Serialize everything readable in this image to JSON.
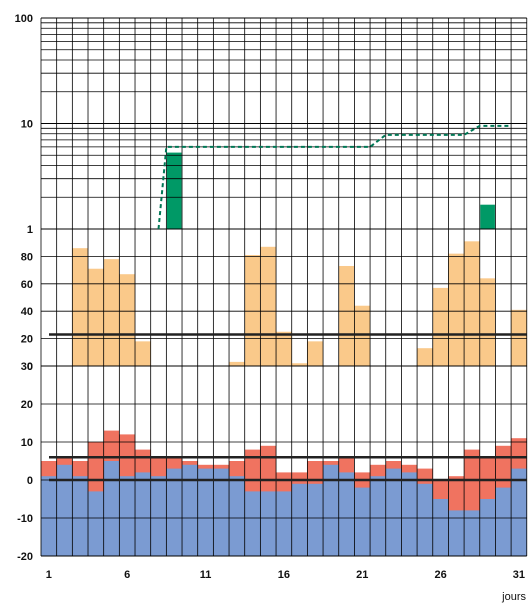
{
  "chart_data": {
    "type": "bar",
    "x_unit_label": "jours",
    "x_tick_labels": [
      "1",
      "6",
      "11",
      "16",
      "21",
      "26",
      "31"
    ],
    "x_days": [
      1,
      2,
      3,
      4,
      5,
      6,
      7,
      8,
      9,
      10,
      11,
      12,
      13,
      14,
      15,
      16,
      17,
      18,
      19,
      20,
      21,
      22,
      23,
      24,
      25,
      26,
      27,
      28,
      29,
      30,
      31
    ],
    "colors": {
      "panel3_bar": "#009966",
      "panel3_line": "#007755",
      "panel2_bar": "#FAC98A",
      "panel1_top": "#F07360",
      "panel1_bottom": "#7B9BD2",
      "grid": "#000000"
    },
    "panels": [
      {
        "id": "top",
        "scale": "log",
        "y_tick_labels": [
          "1",
          "10",
          "100"
        ],
        "ylim": [
          1,
          100
        ],
        "bars": [
          {
            "day": 9,
            "value": 5.3
          },
          {
            "day": 29,
            "value": 1.7
          }
        ],
        "step_line": [
          {
            "day": 8,
            "value": 1.0
          },
          {
            "day": 9,
            "value": 6.0
          },
          {
            "day": 22,
            "value": 6.0
          },
          {
            "day": 23,
            "value": 7.8
          },
          {
            "day": 28,
            "value": 7.8
          },
          {
            "day": 29,
            "value": 9.5
          },
          {
            "day": 31,
            "value": 9.5
          }
        ]
      },
      {
        "id": "middle",
        "scale": "linear",
        "y_tick_labels": [
          "0",
          "20",
          "40",
          "60",
          "80"
        ],
        "ylim": [
          0,
          100
        ],
        "values": [
          0,
          0,
          86,
          71,
          78,
          67,
          18,
          0,
          0,
          0,
          0,
          0,
          3,
          81,
          87,
          25,
          2,
          18,
          0,
          73,
          44,
          0,
          0,
          0,
          13,
          57,
          82,
          91,
          64,
          0,
          41
        ],
        "reference_line": 23
      },
      {
        "id": "bottom",
        "scale": "linear",
        "y_tick_labels": [
          "-20",
          "-10",
          "0",
          "10",
          "20",
          "30"
        ],
        "ylim": [
          -20,
          30
        ],
        "upper": [
          5,
          6,
          5,
          10,
          13,
          12,
          8,
          6,
          6,
          5,
          4,
          4,
          5,
          8,
          9,
          2,
          2,
          5,
          5,
          6,
          2,
          4,
          5,
          4,
          3,
          0,
          1,
          8,
          6,
          9,
          11
        ],
        "lower": [
          1,
          4,
          1,
          -3,
          5,
          1,
          2,
          1,
          3,
          4,
          3,
          3,
          1,
          -3,
          -3,
          -3,
          -1,
          -1,
          4,
          2,
          -2,
          1,
          3,
          2,
          -1,
          -5,
          -8,
          -8,
          -5,
          -2,
          3
        ],
        "reference_lines": [
          6,
          0
        ]
      }
    ]
  }
}
